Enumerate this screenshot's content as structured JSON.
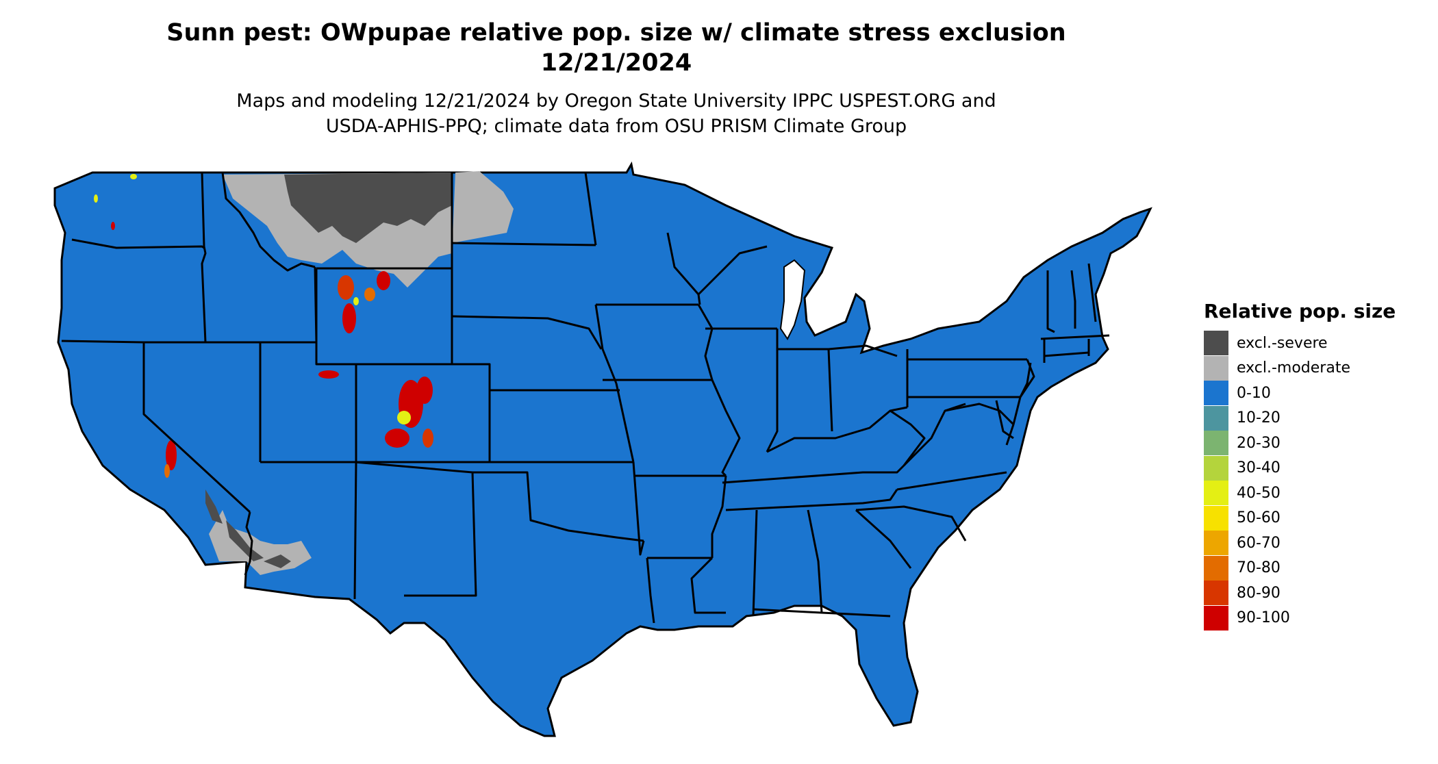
{
  "map": {
    "title_line1": "Sunn pest: OWpupae relative pop. size w/ climate stress exclusion",
    "title_line2": "12/21/2024",
    "subtitle_line1": "Maps and modeling 12/21/2024 by Oregon State University IPPC USPEST.ORG and",
    "subtitle_line2": "USDA-APHIS-PPQ; climate data from OSU PRISM Climate Group",
    "base_color": "#1b75cf",
    "border_color": "#000000"
  },
  "legend": {
    "title": "Relative pop. size",
    "items": [
      {
        "label": "excl.-severe",
        "color": "#4d4d4d"
      },
      {
        "label": "excl.-moderate",
        "color": "#b3b3b3"
      },
      {
        "label": "0-10",
        "color": "#1b75cf"
      },
      {
        "label": "10-20",
        "color": "#4d959f"
      },
      {
        "label": "20-30",
        "color": "#7cb470"
      },
      {
        "label": "30-40",
        "color": "#b4d43c"
      },
      {
        "label": "40-50",
        "color": "#e4ef14"
      },
      {
        "label": "50-60",
        "color": "#f7e100"
      },
      {
        "label": "60-70",
        "color": "#eda600"
      },
      {
        "label": "70-80",
        "color": "#e36c00"
      },
      {
        "label": "80-90",
        "color": "#d83600"
      },
      {
        "label": "90-100",
        "color": "#cf0000"
      }
    ]
  }
}
